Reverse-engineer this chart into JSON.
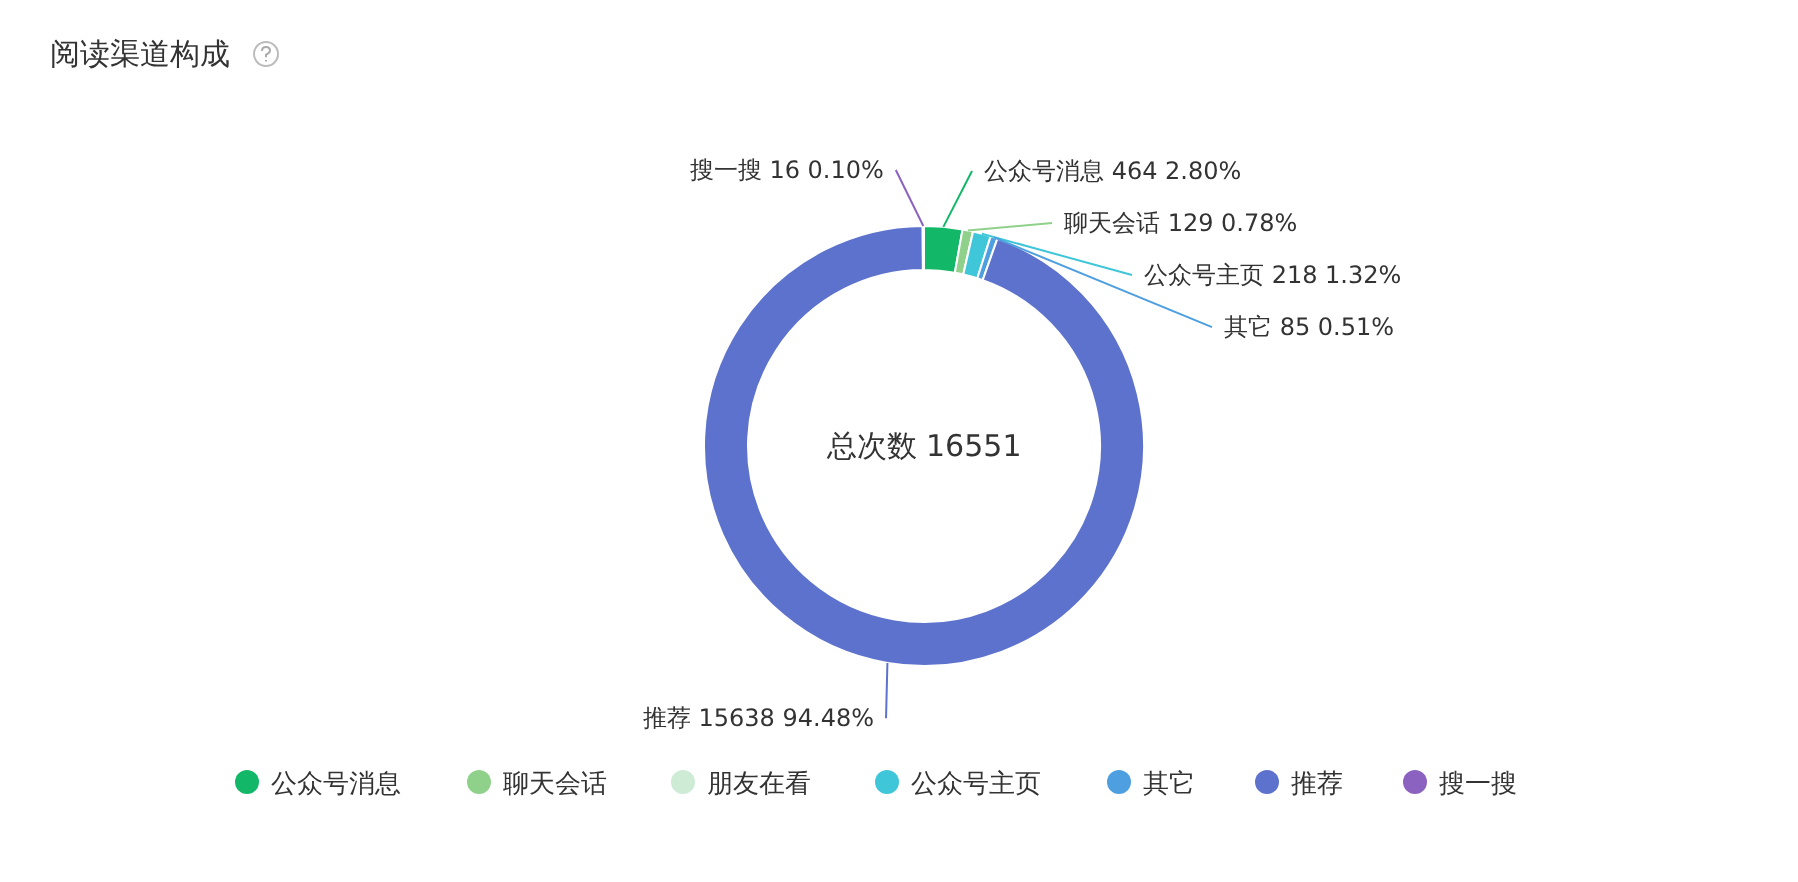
{
  "chart_data": {
    "type": "donut",
    "title": "阅读渠道构成",
    "categories": [
      "公众号消息",
      "聊天会话",
      "朋友在看",
      "公众号主页",
      "其它",
      "推荐",
      "搜一搜"
    ],
    "values": [
      464,
      129,
      null,
      218,
      85,
      15638,
      16
    ],
    "colors": [
      "#12b868",
      "#8fd18a",
      "#cdebd5",
      "#3fc6d8",
      "#4d9fe0",
      "#5d72cc",
      "#8b62c0"
    ],
    "value_labels": [
      "464 2.80%",
      "129 0.78%",
      null,
      "218 1.32%",
      "85 0.51%",
      "15638 94.48%",
      "16 0.10%"
    ],
    "annotations": [
      "总次数 16551"
    ],
    "legend": "bottom"
  }
}
